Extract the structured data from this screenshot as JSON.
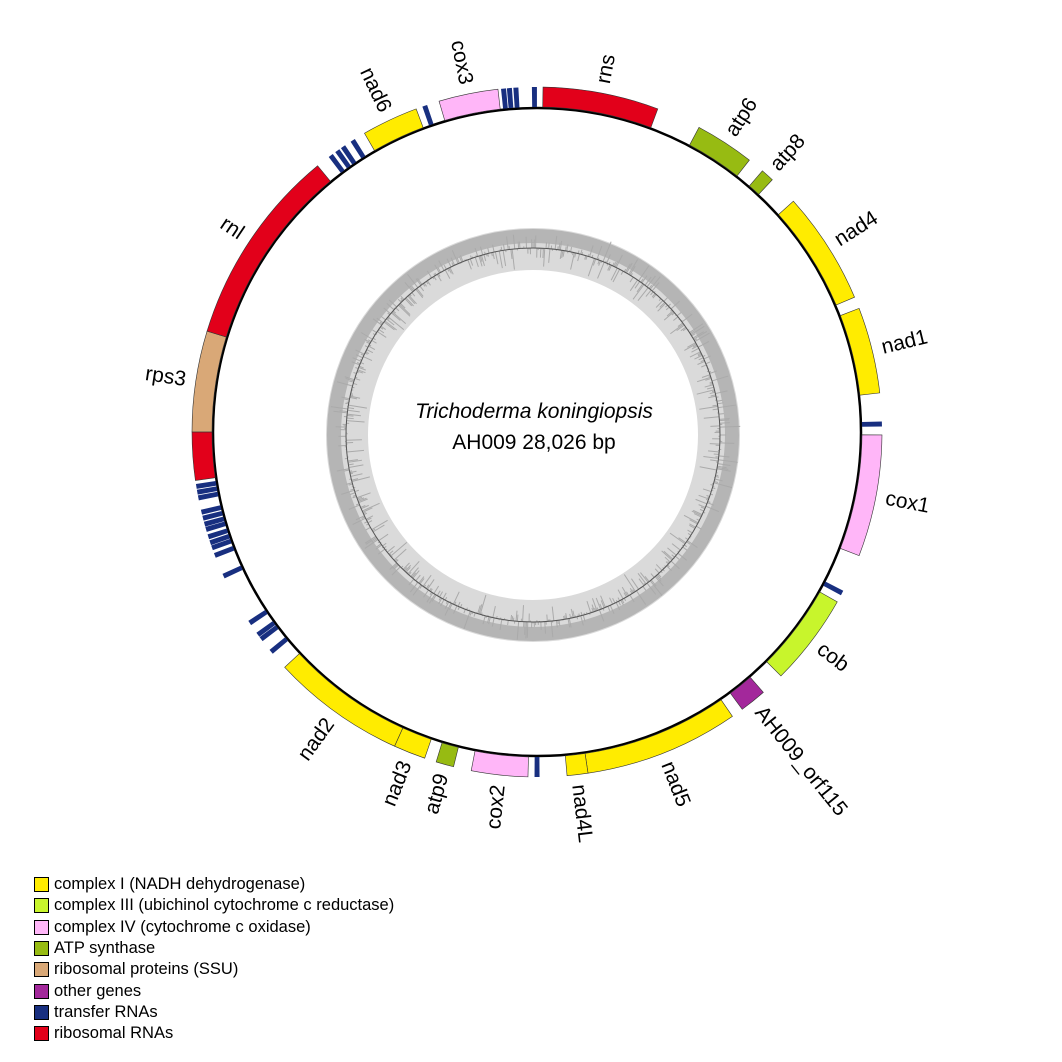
{
  "center": {
    "species": "Trichoderma koningiopsis",
    "strain_size": "AH009  28,026 bp"
  },
  "genome_length_bp": 28026,
  "categories": {
    "complex1": {
      "label": "complex I (NADH dehydrogenase)",
      "color": "#ffec00"
    },
    "complex3": {
      "label": "complex III (ubichinol cytochrome c reductase)",
      "color": "#c8f52c"
    },
    "complex4": {
      "label": "complex IV (cytochrome c oxidase)",
      "color": "#ffb6f8"
    },
    "atp": {
      "label": "ATP synthase",
      "color": "#97bb12"
    },
    "ribprot": {
      "label": "ribosomal proteins (SSU)",
      "color": "#d9a877"
    },
    "other": {
      "label": "other genes",
      "color": "#a3289b"
    },
    "trna": {
      "label": "transfer RNAs",
      "color": "#182f80"
    },
    "rrna": {
      "label": "ribosomal RNAs",
      "color": "#e2001a"
    }
  },
  "legend_order": [
    "complex1",
    "complex3",
    "complex4",
    "atp",
    "ribprot",
    "other",
    "trna",
    "rrna"
  ],
  "genes": [
    {
      "name": "rns",
      "label": "rns",
      "start": 78,
      "end": 1596,
      "cat": "rrna"
    },
    {
      "name": "atp6",
      "label": "atp6",
      "start": 2180,
      "end": 2958,
      "cat": "atp"
    },
    {
      "name": "atp8",
      "label": "atp8",
      "start": 3176,
      "end": 3348,
      "cat": "atp"
    },
    {
      "name": "nad4",
      "label": "nad4",
      "start": 3737,
      "end": 5216,
      "cat": "complex1"
    },
    {
      "name": "nad1",
      "label": "nad1",
      "start": 5372,
      "end": 6500,
      "cat": "complex1"
    },
    {
      "name": "trn",
      "start": 6870,
      "end": 6935,
      "cat": "trna"
    },
    {
      "name": "cox1",
      "label": "cox1",
      "start": 7045,
      "end": 8641,
      "cat": "complex4"
    },
    {
      "name": "trn",
      "start": 9140,
      "end": 9205,
      "cat": "trna"
    },
    {
      "name": "cob",
      "label": "cob",
      "start": 9303,
      "end": 10510,
      "cat": "complex3"
    },
    {
      "name": "AH009_orf115",
      "label": "AH009_orf115",
      "start": 10821,
      "end": 11171,
      "cat": "other"
    },
    {
      "name": "nad5",
      "label": "nad5",
      "start": 11327,
      "end": 13351,
      "cat": "complex1"
    },
    {
      "name": "nad4L",
      "label": "nad4L",
      "start": 13351,
      "end": 13624,
      "cat": "complex1"
    },
    {
      "name": "trn",
      "start": 13980,
      "end": 14045,
      "cat": "trna"
    },
    {
      "name": "cox2",
      "label": "cox2",
      "start": 14130,
      "end": 14869,
      "cat": "complex4"
    },
    {
      "name": "atp9",
      "label": "atp9",
      "start": 15103,
      "end": 15336,
      "cat": "atp"
    },
    {
      "name": "nad3",
      "label": "nad3",
      "start": 15492,
      "end": 15912,
      "cat": "complex1"
    },
    {
      "name": "nad2",
      "label": "nad2",
      "start": 15912,
      "end": 17672,
      "cat": "complex1"
    },
    {
      "name": "trn",
      "start": 17905,
      "end": 17970,
      "cat": "trna"
    },
    {
      "name": "trn",
      "start": 18115,
      "end": 18180,
      "cat": "trna"
    },
    {
      "name": "trn",
      "start": 18185,
      "end": 18250,
      "cat": "trna"
    },
    {
      "name": "trn",
      "start": 18370,
      "end": 18435,
      "cat": "trna"
    },
    {
      "name": "trn",
      "start": 19065,
      "end": 19130,
      "cat": "trna"
    },
    {
      "name": "trn",
      "start": 19355,
      "end": 19420,
      "cat": "trna"
    },
    {
      "name": "trn",
      "start": 19460,
      "end": 19525,
      "cat": "trna"
    },
    {
      "name": "trn",
      "start": 19530,
      "end": 19595,
      "cat": "trna"
    },
    {
      "name": "trn",
      "start": 19610,
      "end": 19675,
      "cat": "trna"
    },
    {
      "name": "trn",
      "start": 19710,
      "end": 19775,
      "cat": "trna"
    },
    {
      "name": "trn",
      "start": 19780,
      "end": 19845,
      "cat": "trna"
    },
    {
      "name": "trn",
      "start": 19860,
      "end": 19925,
      "cat": "trna"
    },
    {
      "name": "trn",
      "start": 19940,
      "end": 20005,
      "cat": "trna"
    },
    {
      "name": "trn",
      "start": 20130,
      "end": 20195,
      "cat": "trna"
    },
    {
      "name": "trn",
      "start": 20205,
      "end": 20270,
      "cat": "trna"
    },
    {
      "name": "trn",
      "start": 20280,
      "end": 20345,
      "cat": "trna"
    },
    {
      "name": "rnl",
      "start": 20390,
      "end": 21020,
      "cat": "rrna"
    },
    {
      "name": "rps3",
      "label": "rps3",
      "start": 21020,
      "end": 22343,
      "cat": "ribprot"
    },
    {
      "name": "rnl",
      "label": "rnl",
      "start": 22343,
      "end": 24952,
      "cat": "rrna"
    },
    {
      "name": "trn",
      "start": 25135,
      "end": 25200,
      "cat": "trna"
    },
    {
      "name": "trn",
      "start": 25240,
      "end": 25305,
      "cat": "trna"
    },
    {
      "name": "trn",
      "start": 25330,
      "end": 25395,
      "cat": "trna"
    },
    {
      "name": "trn",
      "start": 25480,
      "end": 25545,
      "cat": "trna"
    },
    {
      "name": "nad6",
      "label": "nad6",
      "start": 25690,
      "end": 26430,
      "cat": "complex1"
    },
    {
      "name": "trn",
      "start": 26515,
      "end": 26580,
      "cat": "trna"
    },
    {
      "name": "cox3",
      "label": "cox3",
      "start": 26742,
      "end": 27520,
      "cat": "complex4"
    },
    {
      "name": "trn",
      "start": 27560,
      "end": 27625,
      "cat": "trna"
    },
    {
      "name": "trn",
      "start": 27636,
      "end": 27701,
      "cat": "trna"
    },
    {
      "name": "trn",
      "start": 27720,
      "end": 27785,
      "cat": "trna"
    },
    {
      "name": "trn",
      "start": 27960,
      "end": 28025,
      "cat": "trna"
    }
  ]
}
